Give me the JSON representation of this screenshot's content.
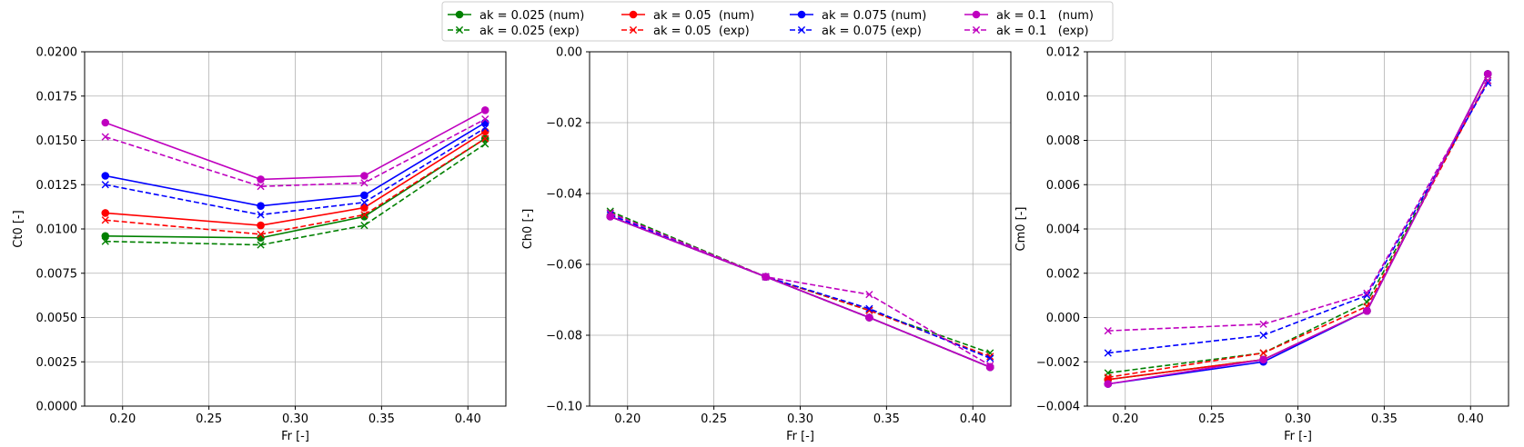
{
  "legend": {
    "placement": "top-center",
    "entries": [
      {
        "label": "ak = 0.025 (num)",
        "color": "#008000",
        "style": "solid",
        "marker": "circle"
      },
      {
        "label": "ak = 0.025 (exp)",
        "color": "#008000",
        "style": "dashed",
        "marker": "x"
      },
      {
        "label": "ak = 0.05  (num)",
        "color": "#ff0000",
        "style": "solid",
        "marker": "circle"
      },
      {
        "label": "ak = 0.05  (exp)",
        "color": "#ff0000",
        "style": "dashed",
        "marker": "x"
      },
      {
        "label": "ak = 0.075 (num)",
        "color": "#0000ff",
        "style": "solid",
        "marker": "circle"
      },
      {
        "label": "ak = 0.075 (exp)",
        "color": "#0000ff",
        "style": "dashed",
        "marker": "x"
      },
      {
        "label": "ak = 0.1   (num)",
        "color": "#bf00bf",
        "style": "solid",
        "marker": "circle"
      },
      {
        "label": "ak = 0.1   (exp)",
        "color": "#bf00bf",
        "style": "dashed",
        "marker": "x"
      }
    ]
  },
  "chart_data": [
    {
      "type": "line",
      "title": "",
      "xlabel": "Fr [-]",
      "ylabel": "Ct0 [-]",
      "xlim": [
        0.178,
        0.422
      ],
      "ylim": [
        0.0,
        0.02
      ],
      "xticks": [
        0.2,
        0.25,
        0.3,
        0.35,
        0.4
      ],
      "xtick_labels": [
        "0.20",
        "0.25",
        "0.30",
        "0.35",
        "0.40"
      ],
      "yticks": [
        0.0,
        0.0025,
        0.005,
        0.0075,
        0.01,
        0.0125,
        0.015,
        0.0175,
        0.02
      ],
      "ytick_labels": [
        "0.0000",
        "0.0025",
        "0.0050",
        "0.0075",
        "0.0100",
        "0.0125",
        "0.0150",
        "0.0175",
        "0.0200"
      ],
      "grid": true,
      "x": [
        0.19,
        0.28,
        0.34,
        0.41
      ],
      "series": [
        {
          "name": "ak = 0.025 (num)",
          "color": "#008000",
          "style": "solid",
          "marker": "circle",
          "values": [
            0.0096,
            0.0095,
            0.0107,
            0.0151
          ]
        },
        {
          "name": "ak = 0.025 (exp)",
          "color": "#008000",
          "style": "dashed",
          "marker": "x",
          "values": [
            0.0093,
            0.0091,
            0.0102,
            0.0148
          ]
        },
        {
          "name": "ak = 0.05  (num)",
          "color": "#ff0000",
          "style": "solid",
          "marker": "circle",
          "values": [
            0.0109,
            0.0102,
            0.0112,
            0.0155
          ]
        },
        {
          "name": "ak = 0.05  (exp)",
          "color": "#ff0000",
          "style": "dashed",
          "marker": "x",
          "values": [
            0.0105,
            0.0097,
            0.0108,
            0.0151
          ]
        },
        {
          "name": "ak = 0.075 (num)",
          "color": "#0000ff",
          "style": "solid",
          "marker": "circle",
          "values": [
            0.013,
            0.0113,
            0.0119,
            0.016
          ]
        },
        {
          "name": "ak = 0.075 (exp)",
          "color": "#0000ff",
          "style": "dashed",
          "marker": "x",
          "values": [
            0.0125,
            0.0108,
            0.0115,
            0.0157
          ]
        },
        {
          "name": "ak = 0.1   (num)",
          "color": "#bf00bf",
          "style": "solid",
          "marker": "circle",
          "values": [
            0.016,
            0.0128,
            0.013,
            0.0167
          ]
        },
        {
          "name": "ak = 0.1   (exp)",
          "color": "#bf00bf",
          "style": "dashed",
          "marker": "x",
          "values": [
            0.0152,
            0.0124,
            0.0126,
            0.0162
          ]
        }
      ]
    },
    {
      "type": "line",
      "title": "",
      "xlabel": "Fr [-]",
      "ylabel": "Ch0 [-]",
      "xlim": [
        0.178,
        0.422
      ],
      "ylim": [
        -0.1,
        0.0
      ],
      "xticks": [
        0.2,
        0.25,
        0.3,
        0.35,
        0.4
      ],
      "xtick_labels": [
        "0.20",
        "0.25",
        "0.30",
        "0.35",
        "0.40"
      ],
      "yticks": [
        -0.1,
        -0.08,
        -0.06,
        -0.04,
        -0.02,
        0.0
      ],
      "ytick_labels": [
        "−0.10",
        "−0.08",
        "−0.06",
        "−0.04",
        "−0.02",
        "0.00"
      ],
      "grid": true,
      "x": [
        0.19,
        0.28,
        0.34,
        0.41
      ],
      "series": [
        {
          "name": "ak = 0.025 (num)",
          "color": "#008000",
          "style": "solid",
          "marker": "circle",
          "values": [
            -0.0465,
            -0.0635,
            -0.075,
            -0.089
          ]
        },
        {
          "name": "ak = 0.025 (exp)",
          "color": "#008000",
          "style": "dashed",
          "marker": "x",
          "values": [
            -0.045,
            -0.0635,
            -0.073,
            -0.085
          ]
        },
        {
          "name": "ak = 0.05  (num)",
          "color": "#ff0000",
          "style": "solid",
          "marker": "circle",
          "values": [
            -0.0465,
            -0.0635,
            -0.075,
            -0.089
          ]
        },
        {
          "name": "ak = 0.05  (exp)",
          "color": "#ff0000",
          "style": "dashed",
          "marker": "x",
          "values": [
            -0.0455,
            -0.0635,
            -0.073,
            -0.086
          ]
        },
        {
          "name": "ak = 0.075 (num)",
          "color": "#0000ff",
          "style": "solid",
          "marker": "circle",
          "values": [
            -0.0465,
            -0.0635,
            -0.075,
            -0.089
          ]
        },
        {
          "name": "ak = 0.075 (exp)",
          "color": "#0000ff",
          "style": "dashed",
          "marker": "x",
          "values": [
            -0.046,
            -0.0635,
            -0.0725,
            -0.0865
          ]
        },
        {
          "name": "ak = 0.1   (num)",
          "color": "#bf00bf",
          "style": "solid",
          "marker": "circle",
          "values": [
            -0.0465,
            -0.0635,
            -0.075,
            -0.089
          ]
        },
        {
          "name": "ak = 0.1   (exp)",
          "color": "#bf00bf",
          "style": "dashed",
          "marker": "x",
          "values": [
            -0.0455,
            -0.0635,
            -0.0685,
            -0.0885
          ]
        }
      ]
    },
    {
      "type": "line",
      "title": "",
      "xlabel": "Fr [-]",
      "ylabel": "Cm0 [-]",
      "xlim": [
        0.178,
        0.422
      ],
      "ylim": [
        -0.004,
        0.012
      ],
      "xticks": [
        0.2,
        0.25,
        0.3,
        0.35,
        0.4
      ],
      "xtick_labels": [
        "0.20",
        "0.25",
        "0.30",
        "0.35",
        "0.40"
      ],
      "yticks": [
        -0.004,
        -0.002,
        0.0,
        0.002,
        0.004,
        0.006,
        0.008,
        0.01,
        0.012
      ],
      "ytick_labels": [
        "−0.004",
        "−0.002",
        "0.000",
        "0.002",
        "0.004",
        "0.006",
        "0.008",
        "0.010",
        "0.012"
      ],
      "grid": true,
      "x": [
        0.19,
        0.28,
        0.34,
        0.41
      ],
      "series": [
        {
          "name": "ak = 0.025 (num)",
          "color": "#008000",
          "style": "solid",
          "marker": "circle",
          "values": [
            -0.0028,
            -0.0019,
            0.0003,
            0.011
          ]
        },
        {
          "name": "ak = 0.025 (exp)",
          "color": "#008000",
          "style": "dashed",
          "marker": "x",
          "values": [
            -0.0025,
            -0.0016,
            0.0007,
            0.0107
          ]
        },
        {
          "name": "ak = 0.05  (num)",
          "color": "#ff0000",
          "style": "solid",
          "marker": "circle",
          "values": [
            -0.0028,
            -0.0019,
            0.0003,
            0.011
          ]
        },
        {
          "name": "ak = 0.05  (exp)",
          "color": "#ff0000",
          "style": "dashed",
          "marker": "x",
          "values": [
            -0.0027,
            -0.0016,
            0.0005,
            0.0107
          ]
        },
        {
          "name": "ak = 0.075 (num)",
          "color": "#0000ff",
          "style": "solid",
          "marker": "circle",
          "values": [
            -0.003,
            -0.002,
            0.0003,
            0.011
          ]
        },
        {
          "name": "ak = 0.075 (exp)",
          "color": "#0000ff",
          "style": "dashed",
          "marker": "x",
          "values": [
            -0.0016,
            -0.0008,
            0.001,
            0.0106
          ]
        },
        {
          "name": "ak = 0.1   (num)",
          "color": "#bf00bf",
          "style": "solid",
          "marker": "circle",
          "values": [
            -0.003,
            -0.0019,
            0.0003,
            0.011
          ]
        },
        {
          "name": "ak = 0.1   (exp)",
          "color": "#bf00bf",
          "style": "dashed",
          "marker": "x",
          "values": [
            -0.0006,
            -0.0003,
            0.0011,
            0.0107
          ]
        }
      ]
    }
  ]
}
